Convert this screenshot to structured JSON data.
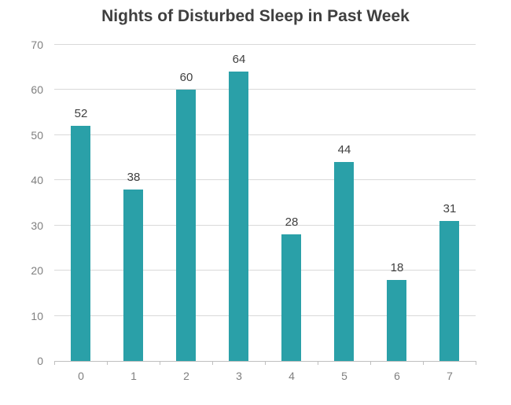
{
  "chart_data": {
    "type": "bar",
    "title": "Nights of Disturbed Sleep in Past Week",
    "categories": [
      "0",
      "1",
      "2",
      "3",
      "4",
      "5",
      "6",
      "7"
    ],
    "values": [
      52,
      38,
      60,
      64,
      28,
      44,
      18,
      31
    ],
    "xlabel": "",
    "ylabel": "",
    "ylim": [
      0,
      70
    ],
    "yticks": [
      0,
      10,
      20,
      30,
      40,
      50,
      60,
      70
    ],
    "grid": true,
    "legend": "none",
    "data_labels": true
  },
  "colors": {
    "bar": "#2aa0a8",
    "title": "#3f3f3f",
    "data_label": "#404040",
    "axis_label": "#7f7f7f",
    "gridline": "#d9d9d9",
    "axis_line": "#bfbfbf",
    "background": "#ffffff"
  }
}
